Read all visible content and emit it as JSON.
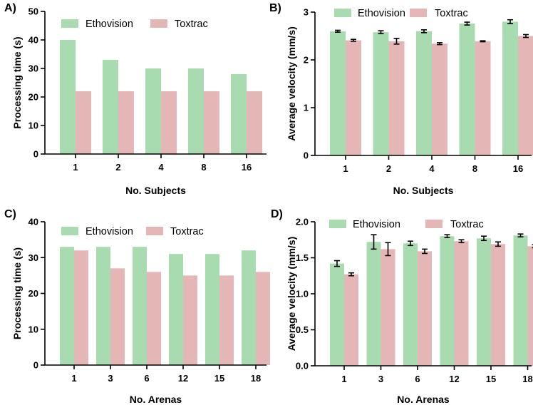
{
  "colors": {
    "ethovision": "#a8dcb0",
    "toxtrac": "#e5b6b6",
    "axis": "#000000",
    "errorbar": "#000000"
  },
  "chart_data": [
    {
      "panel": "A)",
      "type": "bar",
      "xlabel": "No. Subjects",
      "ylabel": "Processing time (s)",
      "ylim": [
        0,
        50
      ],
      "yticks": [
        0,
        10,
        20,
        30,
        40,
        50
      ],
      "ytick_labels": [
        "0",
        "10",
        "20",
        "30",
        "40",
        "50"
      ],
      "categories": [
        "1",
        "2",
        "4",
        "8",
        "16"
      ],
      "legend": [
        "Ethovision",
        "Toxtrac"
      ],
      "legend_position": "top",
      "series": [
        {
          "name": "Ethovision",
          "values": [
            40,
            33,
            30,
            30,
            28
          ]
        },
        {
          "name": "Toxtrac",
          "values": [
            22,
            22,
            22,
            22,
            22
          ]
        }
      ]
    },
    {
      "panel": "B)",
      "type": "bar",
      "xlabel": "No. Subjects",
      "ylabel": "Average velocity (mm/s)",
      "ylim": [
        0,
        3
      ],
      "yticks": [
        0,
        1,
        2,
        3
      ],
      "ytick_labels": [
        "0",
        "1",
        "2",
        "3"
      ],
      "categories": [
        "1",
        "2",
        "4",
        "8",
        "16"
      ],
      "legend": [
        "Ethovision",
        "Toxtrac"
      ],
      "legend_position": "top",
      "series": [
        {
          "name": "Ethovision",
          "values": [
            2.6,
            2.58,
            2.6,
            2.76,
            2.8
          ],
          "errors": [
            0.02,
            0.03,
            0.03,
            0.03,
            0.04
          ]
        },
        {
          "name": "Toxtrac",
          "values": [
            2.41,
            2.39,
            2.34,
            2.39,
            2.5
          ],
          "errors": [
            0.02,
            0.06,
            0.02,
            0.01,
            0.03
          ]
        }
      ]
    },
    {
      "panel": "C)",
      "type": "bar",
      "xlabel": "No. Arenas",
      "ylabel": "Processing time (s)",
      "ylim": [
        0,
        40
      ],
      "yticks": [
        0,
        10,
        20,
        30,
        40
      ],
      "ytick_labels": [
        "0",
        "10",
        "20",
        "30",
        "40"
      ],
      "categories": [
        "1",
        "3",
        "6",
        "12",
        "15",
        "18"
      ],
      "legend": [
        "Ethovision",
        "Toxtrac"
      ],
      "legend_position": "top",
      "series": [
        {
          "name": "Ethovision",
          "values": [
            33,
            33,
            33,
            31,
            31,
            32
          ]
        },
        {
          "name": "Toxtrac",
          "values": [
            32,
            27,
            26,
            25,
            25,
            26
          ]
        }
      ]
    },
    {
      "panel": "D)",
      "type": "bar",
      "xlabel": "No. Arenas",
      "ylabel": "Average velocity (mm/s)",
      "ylim": [
        0,
        2
      ],
      "yticks": [
        0,
        0.5,
        1,
        1.5,
        2
      ],
      "ytick_labels": [
        "0.0",
        "0.5",
        "1.0",
        "1.5",
        "2.0"
      ],
      "categories": [
        "1",
        "3",
        "6",
        "12",
        "15",
        "18"
      ],
      "legend": [
        "Ethovision",
        "Toxtrac"
      ],
      "legend_position": "top",
      "series": [
        {
          "name": "Ethovision",
          "values": [
            1.42,
            1.72,
            1.7,
            1.8,
            1.77,
            1.81
          ],
          "errors": [
            0.04,
            0.1,
            0.03,
            0.02,
            0.03,
            0.02
          ]
        },
        {
          "name": "Toxtrac",
          "values": [
            1.27,
            1.62,
            1.59,
            1.73,
            1.69,
            1.66
          ],
          "errors": [
            0.02,
            0.09,
            0.03,
            0.02,
            0.03,
            0.02
          ]
        }
      ]
    }
  ]
}
